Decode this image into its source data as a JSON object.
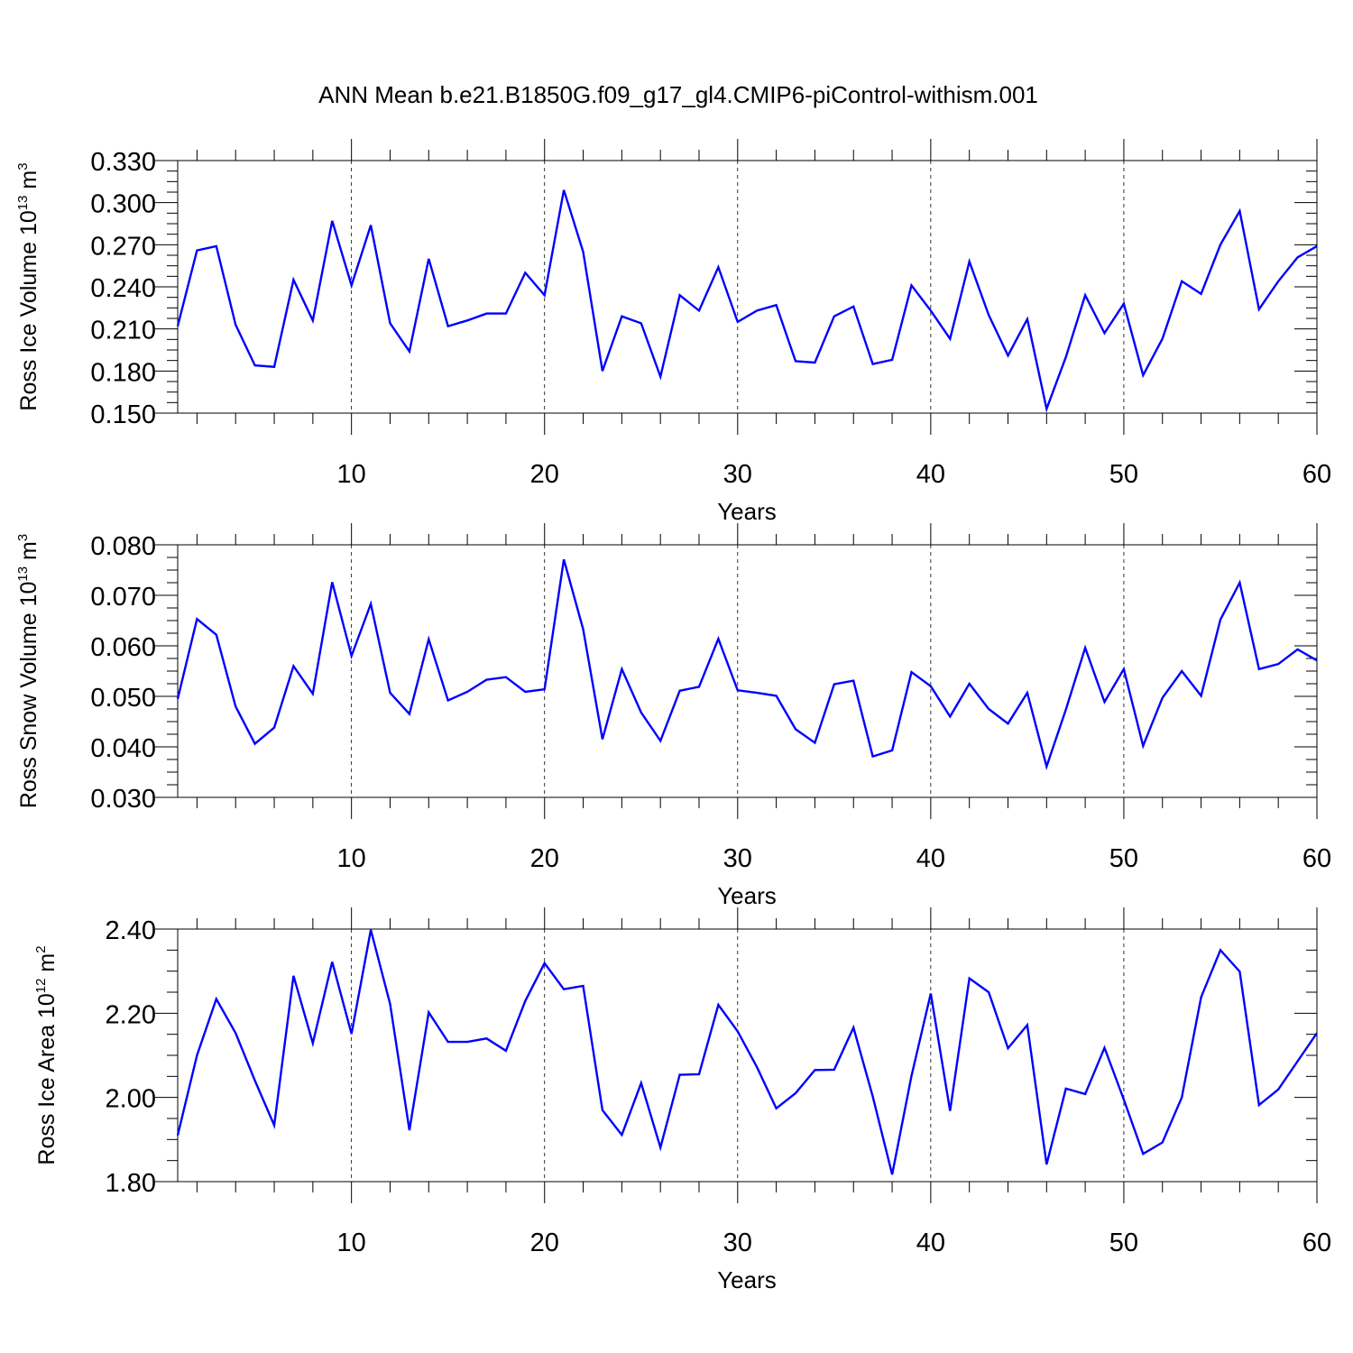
{
  "colors": {
    "line": "#0000ff",
    "axis": "#000000",
    "grid": "#000000"
  },
  "chart_data": {
    "title": "ANN Mean b.e21.B1850G.f09_g17_gl4.CMIP6-piControl-withism.001",
    "panels": [
      {
        "type": "line",
        "ylabel": {
          "base": "Ross Ice Volume 10",
          "sup": "13",
          "mid": " m",
          "sup2": "3"
        },
        "xlabel": "Years",
        "xlim": [
          1,
          60
        ],
        "ylim": [
          0.15,
          0.33
        ],
        "xticks": [
          10,
          20,
          30,
          40,
          50,
          60
        ],
        "xtick_labels": [
          "10",
          "20",
          "30",
          "40",
          "50",
          "60"
        ],
        "yticks": [
          0.15,
          0.18,
          0.21,
          0.24,
          0.27,
          0.3,
          0.33
        ],
        "ytick_labels": [
          "0.150",
          "0.180",
          "0.210",
          "0.240",
          "0.270",
          "0.300",
          "0.330"
        ],
        "grid": "vertical dashed",
        "x": [
          1,
          2,
          3,
          4,
          5,
          6,
          7,
          8,
          9,
          10,
          11,
          12,
          13,
          14,
          15,
          16,
          17,
          18,
          19,
          20,
          21,
          22,
          23,
          24,
          25,
          26,
          27,
          28,
          29,
          30,
          31,
          32,
          33,
          34,
          35,
          36,
          37,
          38,
          39,
          40,
          41,
          42,
          43,
          44,
          45,
          46,
          47,
          48,
          49,
          50,
          51,
          52,
          53,
          54,
          55,
          56,
          57,
          58,
          59,
          60
        ],
        "values": [
          0.212,
          0.266,
          0.269,
          0.213,
          0.184,
          0.183,
          0.245,
          0.216,
          0.287,
          0.241,
          0.284,
          0.214,
          0.194,
          0.26,
          0.212,
          0.216,
          0.221,
          0.221,
          0.25,
          0.234,
          0.309,
          0.265,
          0.18,
          0.219,
          0.214,
          0.176,
          0.234,
          0.223,
          0.254,
          0.215,
          0.223,
          0.227,
          0.187,
          0.186,
          0.219,
          0.226,
          0.185,
          0.188,
          0.241,
          0.223,
          0.203,
          0.258,
          0.22,
          0.191,
          0.217,
          0.153,
          0.19,
          0.234,
          0.207,
          0.228,
          0.177,
          0.203,
          0.244,
          0.235,
          0.27,
          0.294,
          0.224,
          0.244,
          0.261,
          0.269
        ]
      },
      {
        "type": "line",
        "ylabel": {
          "base": "Ross Snow Volume 10",
          "sup": "13",
          "mid": " m",
          "sup2": "3"
        },
        "xlabel": "Years",
        "xlim": [
          1,
          60
        ],
        "ylim": [
          0.03,
          0.08
        ],
        "xticks": [
          10,
          20,
          30,
          40,
          50,
          60
        ],
        "xtick_labels": [
          "10",
          "20",
          "30",
          "40",
          "50",
          "60"
        ],
        "yticks": [
          0.03,
          0.04,
          0.05,
          0.06,
          0.07,
          0.08
        ],
        "ytick_labels": [
          "0.030",
          "0.040",
          "0.050",
          "0.060",
          "0.070",
          "0.080"
        ],
        "grid": "vertical dashed",
        "x": [
          1,
          2,
          3,
          4,
          5,
          6,
          7,
          8,
          9,
          10,
          11,
          12,
          13,
          14,
          15,
          16,
          17,
          18,
          19,
          20,
          21,
          22,
          23,
          24,
          25,
          26,
          27,
          28,
          29,
          30,
          31,
          32,
          33,
          34,
          35,
          36,
          37,
          38,
          39,
          40,
          41,
          42,
          43,
          44,
          45,
          46,
          47,
          48,
          49,
          50,
          51,
          52,
          53,
          54,
          55,
          56,
          57,
          58,
          59,
          60
        ],
        "values": [
          0.0495,
          0.0653,
          0.0622,
          0.048,
          0.0406,
          0.0438,
          0.056,
          0.0505,
          0.0726,
          0.058,
          0.0683,
          0.0507,
          0.0465,
          0.0613,
          0.0492,
          0.0509,
          0.0533,
          0.0538,
          0.0509,
          0.0514,
          0.0771,
          0.0633,
          0.0415,
          0.0554,
          0.0468,
          0.0412,
          0.0511,
          0.0519,
          0.0614,
          0.0512,
          0.0507,
          0.0501,
          0.0435,
          0.0408,
          0.0524,
          0.0531,
          0.0381,
          0.0393,
          0.0548,
          0.052,
          0.046,
          0.0525,
          0.0475,
          0.0446,
          0.0507,
          0.0361,
          0.0474,
          0.0596,
          0.0489,
          0.0554,
          0.0402,
          0.0497,
          0.055,
          0.0501,
          0.0652,
          0.0725,
          0.0554,
          0.0564,
          0.0593,
          0.0571
        ]
      },
      {
        "type": "line",
        "ylabel": {
          "base": "Ross Ice Area 10",
          "sup": "12",
          "mid": " m",
          "sup2": "2"
        },
        "xlabel": "Years",
        "xlim": [
          1,
          60
        ],
        "ylim": [
          1.8,
          2.4
        ],
        "xticks": [
          10,
          20,
          30,
          40,
          50,
          60
        ],
        "xtick_labels": [
          "10",
          "20",
          "30",
          "40",
          "50",
          "60"
        ],
        "yticks": [
          1.8,
          2.0,
          2.2,
          2.4
        ],
        "ytick_labels": [
          "1.80",
          "2.00",
          "2.20",
          "2.40"
        ],
        "grid": "vertical dashed",
        "x": [
          1,
          2,
          3,
          4,
          5,
          6,
          7,
          8,
          9,
          10,
          11,
          12,
          13,
          14,
          15,
          16,
          17,
          18,
          19,
          20,
          21,
          22,
          23,
          24,
          25,
          26,
          27,
          28,
          29,
          30,
          31,
          32,
          33,
          34,
          35,
          36,
          37,
          38,
          39,
          40,
          41,
          42,
          43,
          44,
          45,
          46,
          47,
          48,
          49,
          50,
          51,
          52,
          53,
          54,
          55,
          56,
          57,
          58,
          59,
          60
        ],
        "values": [
          1.91,
          2.1,
          2.234,
          2.153,
          2.04,
          1.934,
          2.289,
          2.129,
          2.322,
          2.151,
          2.398,
          2.222,
          1.922,
          2.202,
          2.132,
          2.132,
          2.14,
          2.111,
          2.229,
          2.319,
          2.257,
          2.265,
          1.97,
          1.911,
          2.034,
          1.881,
          2.054,
          2.055,
          2.22,
          2.157,
          2.072,
          1.974,
          2.01,
          2.065,
          2.066,
          2.166,
          2.002,
          1.817,
          2.051,
          2.247,
          1.968,
          2.283,
          2.25,
          2.117,
          2.172,
          1.841,
          2.021,
          2.008,
          2.118,
          1.995,
          1.866,
          1.893,
          2.0,
          2.238,
          2.35,
          2.299,
          1.982,
          2.019,
          2.086,
          2.153
        ]
      }
    ]
  }
}
